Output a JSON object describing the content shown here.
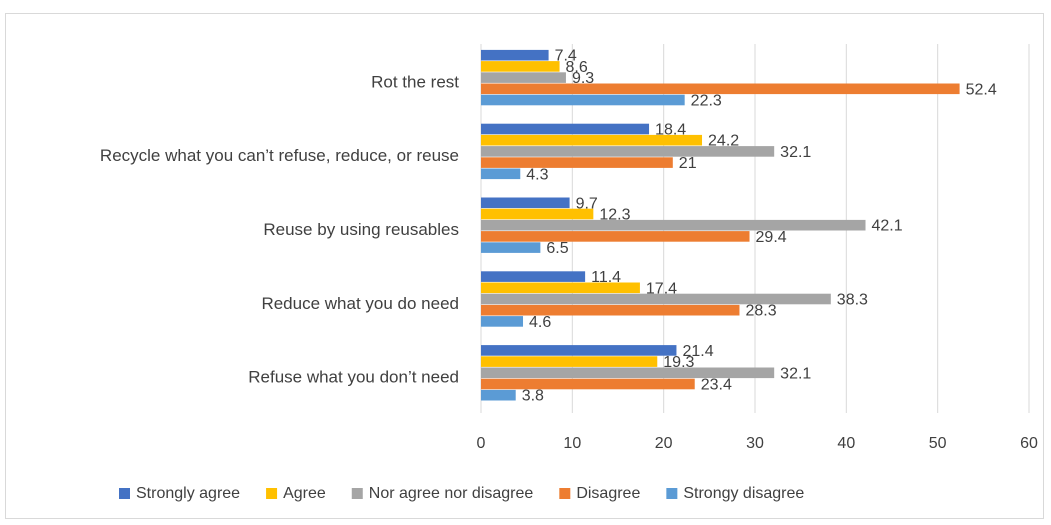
{
  "chart_data": {
    "type": "bar",
    "orientation": "horizontal",
    "title": "",
    "xlabel": "",
    "ylabel": "",
    "xlim": [
      0,
      60
    ],
    "x_ticks": [
      0,
      10,
      20,
      30,
      40,
      50,
      60
    ],
    "grid": "vertical",
    "legend_position": "bottom",
    "categories": [
      "Rot the rest",
      "Recycle what you can’t refuse, reduce, or reuse",
      "Reuse by using reusables",
      "Reduce what you do need",
      "Refuse what you don’t need"
    ],
    "series": [
      {
        "name": "Strongly agree",
        "color": "#4472c4",
        "values": [
          7.4,
          18.4,
          9.7,
          11.4,
          21.4
        ]
      },
      {
        "name": "Agree",
        "color": "#ffc000",
        "values": [
          8.6,
          24.2,
          12.3,
          17.4,
          19.3
        ]
      },
      {
        "name": "Nor agree nor disagree",
        "color": "#a5a5a5",
        "values": [
          9.3,
          32.1,
          42.1,
          38.3,
          32.1
        ]
      },
      {
        "name": "Disagree",
        "color": "#ed7d31",
        "values": [
          52.4,
          21,
          29.4,
          28.3,
          23.4
        ]
      },
      {
        "name": "Strongy disagree",
        "color": "#5b9bd5",
        "values": [
          22.3,
          4.3,
          6.5,
          4.6,
          3.8
        ]
      }
    ]
  }
}
